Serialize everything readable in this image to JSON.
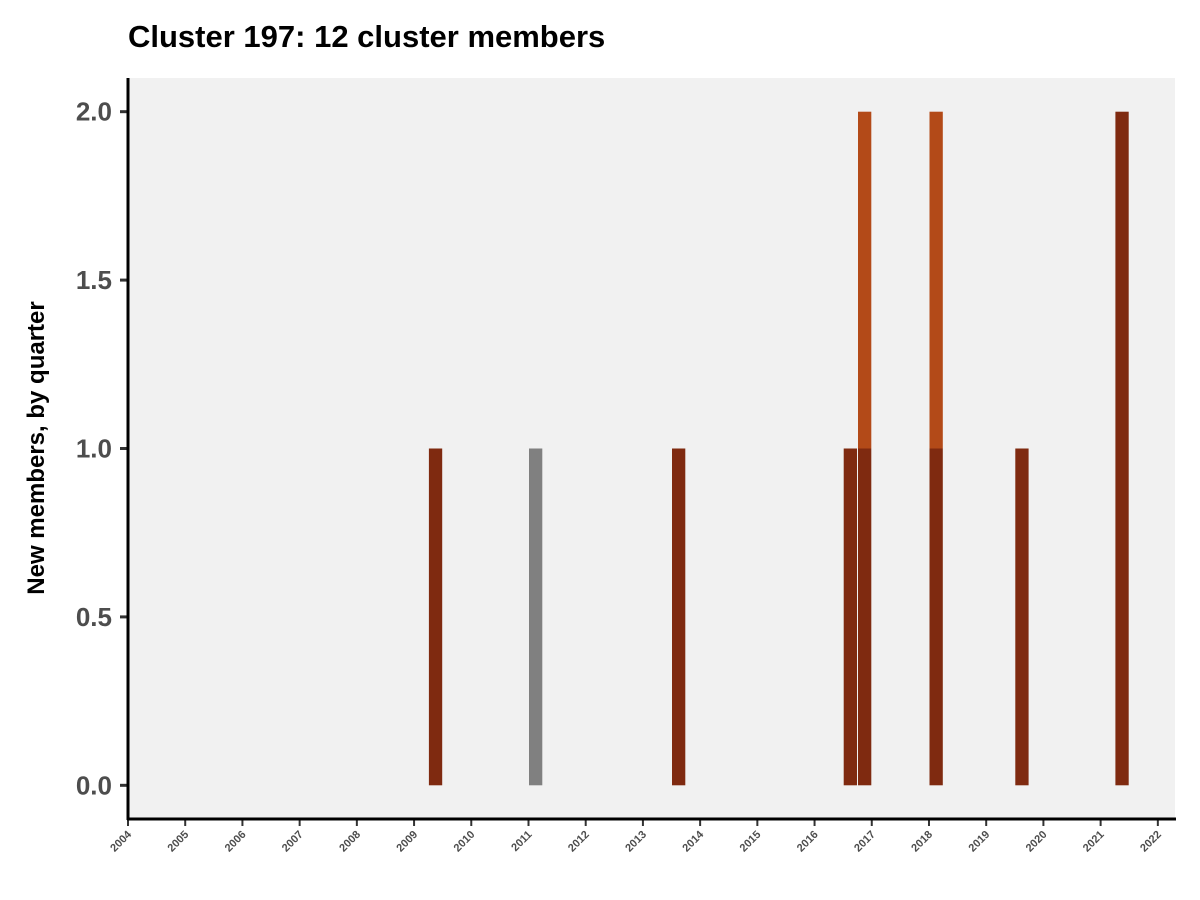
{
  "chart_data": {
    "type": "bar",
    "title": "Cluster 197: 12 cluster members",
    "xlabel": "",
    "ylabel": "New members, by quarter",
    "ylim": [
      -0.1,
      2.1
    ],
    "yticks": [
      "0.0",
      "0.5",
      "1.0",
      "1.5",
      "2.0"
    ],
    "xlim": [
      2004.0,
      2022.3
    ],
    "xticks": [
      "2004",
      "2005",
      "2006",
      "2007",
      "2008",
      "2009",
      "2010",
      "2011",
      "2012",
      "2013",
      "2014",
      "2015",
      "2016",
      "2017",
      "2018",
      "2019",
      "2020",
      "2021",
      "2022"
    ],
    "colors": {
      "dark": "#7f2a10",
      "light": "#b34a18",
      "gray": "#808080",
      "panel": "#f1f1f1",
      "axis": "#000000"
    },
    "bars": [
      {
        "quarter": "2009 Q2",
        "value": 1,
        "segments": [
          {
            "value": 1,
            "color": "dark"
          }
        ]
      },
      {
        "quarter": "2011 Q1",
        "value": 1,
        "segments": [
          {
            "value": 1,
            "color": "gray"
          }
        ]
      },
      {
        "quarter": "2013 Q3",
        "value": 1,
        "segments": [
          {
            "value": 1,
            "color": "dark"
          }
        ]
      },
      {
        "quarter": "2016 Q3",
        "value": 1,
        "segments": [
          {
            "value": 1,
            "color": "dark"
          }
        ]
      },
      {
        "quarter": "2016 Q4",
        "value": 2,
        "segments": [
          {
            "value": 1,
            "color": "dark"
          },
          {
            "value": 1,
            "color": "light"
          }
        ]
      },
      {
        "quarter": "2018 Q1",
        "value": 2,
        "segments": [
          {
            "value": 1,
            "color": "dark"
          },
          {
            "value": 1,
            "color": "light"
          }
        ]
      },
      {
        "quarter": "2019 Q3",
        "value": 1,
        "segments": [
          {
            "value": 1,
            "color": "dark"
          }
        ]
      },
      {
        "quarter": "2021 Q2",
        "value": 2,
        "segments": [
          {
            "value": 2,
            "color": "dark"
          }
        ]
      }
    ]
  }
}
